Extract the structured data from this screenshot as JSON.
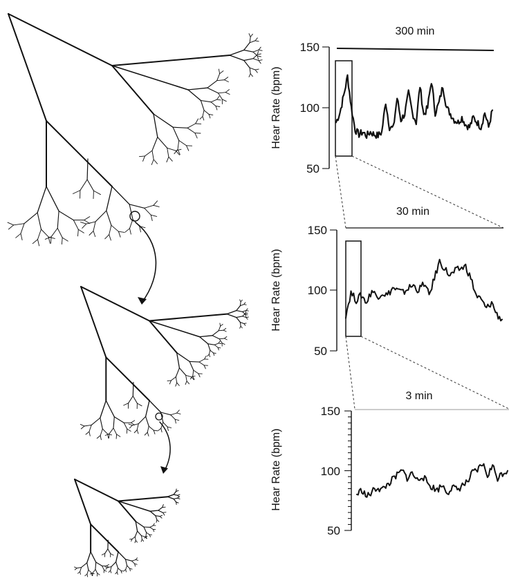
{
  "panels": [
    {
      "id": "p1",
      "duration": "300 min",
      "ylabel": "Hear Rate (bpm)",
      "ticks": [
        "150",
        "100",
        "50"
      ]
    },
    {
      "id": "p2",
      "duration": "30 min",
      "ylabel": "Hear Rate (bpm)",
      "ticks": [
        "150",
        "100",
        "50"
      ]
    },
    {
      "id": "p3",
      "duration": "3 min",
      "ylabel": "Hear Rate (bpm)",
      "ticks": [
        "150",
        "100",
        "50"
      ]
    }
  ],
  "chart_data": [
    {
      "type": "line",
      "title": "300 min",
      "ylabel": "Hear Rate (bpm)",
      "ylim": [
        50,
        150
      ],
      "y_approx": [
        88,
        96,
        110,
        126,
        100,
        82,
        78,
        80,
        77,
        80,
        78,
        77,
        80,
        105,
        84,
        83,
        108,
        90,
        95,
        112,
        96,
        88,
        118,
        94,
        100,
        122,
        96,
        104,
        118,
        100,
        95,
        90,
        88,
        92,
        86,
        84,
        92,
        88,
        84,
        96,
        84,
        98
      ]
    },
    {
      "type": "line",
      "title": "30 min",
      "ylabel": "Hear Rate (bpm)",
      "ylim": [
        50,
        150
      ],
      "y_approx": [
        80,
        98,
        92,
        96,
        90,
        100,
        95,
        98,
        96,
        102,
        100,
        98,
        102,
        104,
        100,
        106,
        96,
        110,
        124,
        118,
        112,
        116,
        118,
        120,
        110,
        96,
        92,
        85,
        90,
        80,
        76
      ]
    },
    {
      "type": "line",
      "title": "3 min",
      "ylabel": "Hear Rate (bpm)",
      "ylim": [
        50,
        150
      ],
      "y_approx": [
        80,
        84,
        78,
        82,
        86,
        84,
        88,
        92,
        96,
        100,
        94,
        98,
        92,
        96,
        90,
        86,
        84,
        88,
        82,
        86,
        84,
        88,
        90,
        98,
        100,
        106,
        96,
        104,
        94,
        98,
        100
      ]
    }
  ]
}
